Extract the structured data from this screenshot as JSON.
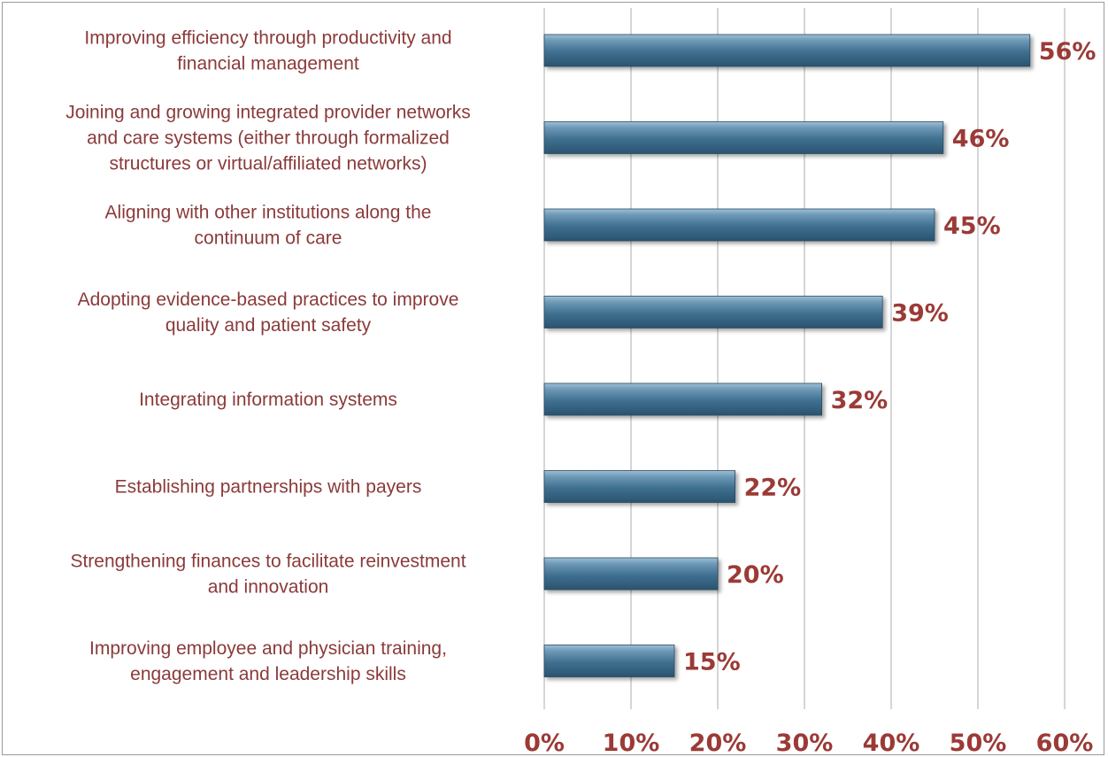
{
  "chart_data": {
    "type": "bar",
    "orientation": "horizontal",
    "categories": [
      "Improving efficiency through productivity and\nfinancial management",
      "Joining and growing integrated provider networks\nand care systems (either through formalized\nstructures or virtual/affiliated networks)",
      "Aligning with other institutions along the\ncontinuum of care",
      "Adopting evidence-based practices to improve\nquality and patient safety",
      "Integrating information systems",
      "Establishing partnerships with payers",
      "Strengthening finances to facilitate reinvestment\nand innovation",
      "Improving employee and physician training,\nengagement and leadership skills"
    ],
    "values": [
      56,
      46,
      45,
      39,
      32,
      22,
      20,
      15
    ],
    "value_labels": [
      "56%",
      "46%",
      "45%",
      "39%",
      "32%",
      "22%",
      "20%",
      "15%"
    ],
    "xlim": [
      0,
      60
    ],
    "x_ticks": [
      "0%",
      "10%",
      "20%",
      "30%",
      "40%",
      "50%",
      "60%"
    ],
    "grid": true,
    "colors": {
      "bar": "#3f6f8f",
      "label": "#8b3a3a",
      "value": "#9b3a36"
    }
  }
}
